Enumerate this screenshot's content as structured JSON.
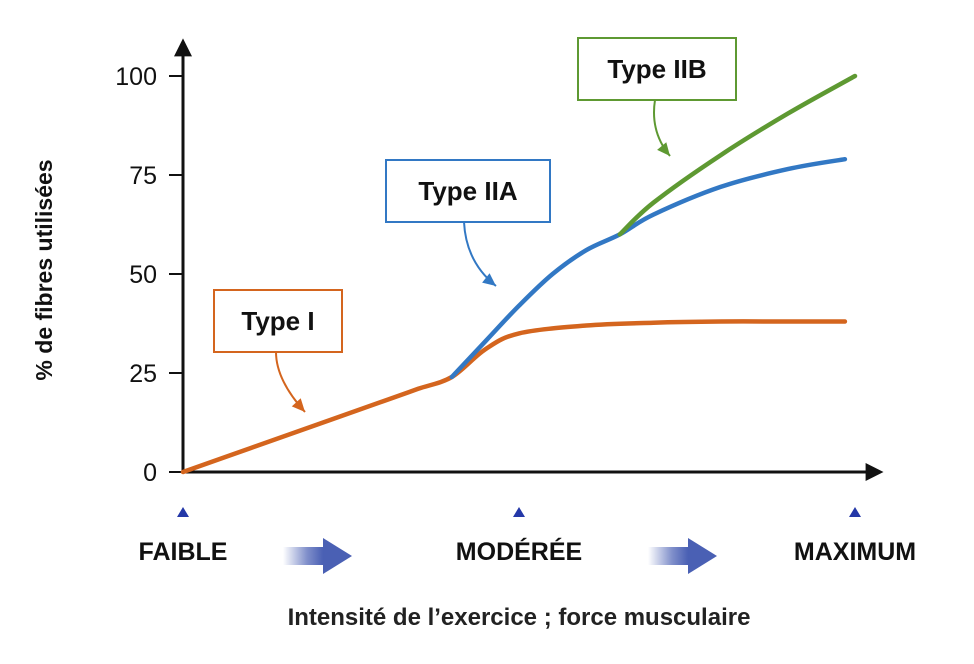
{
  "chart_data": {
    "type": "line",
    "title": "",
    "xlabel": "Intensité de l’exercice ; force musculaire",
    "ylabel": "% de fibres utilisées",
    "xlim": [
      0,
      1
    ],
    "ylim": [
      0,
      100
    ],
    "yticks": [
      "0",
      "25",
      "50",
      "75",
      "100"
    ],
    "x_levels": [
      {
        "label": "FAIBLE",
        "x": 0.0
      },
      {
        "label": "MODÉRÉE",
        "x": 0.5
      },
      {
        "label": "MAXIMUM",
        "x": 1.0
      }
    ],
    "series": [
      {
        "name": "Type I",
        "color": "#D4651E",
        "points": [
          [
            0,
            0
          ],
          [
            0.1,
            6
          ],
          [
            0.2,
            12
          ],
          [
            0.3,
            18
          ],
          [
            0.35,
            21
          ],
          [
            0.4,
            24
          ],
          [
            0.45,
            31
          ],
          [
            0.5,
            35
          ],
          [
            0.6,
            37
          ],
          [
            0.7,
            37.7
          ],
          [
            0.8,
            38
          ],
          [
            0.9,
            38
          ],
          [
            0.985,
            38
          ]
        ]
      },
      {
        "name": "Type IIA",
        "color": "#3278C4",
        "points": [
          [
            0.4,
            24
          ],
          [
            0.45,
            33
          ],
          [
            0.5,
            42
          ],
          [
            0.55,
            50
          ],
          [
            0.6,
            56
          ],
          [
            0.65,
            60
          ],
          [
            0.7,
            65
          ],
          [
            0.8,
            72
          ],
          [
            0.9,
            76.5
          ],
          [
            0.985,
            79
          ]
        ]
      },
      {
        "name": "Type IIB",
        "color": "#5E9932",
        "points": [
          [
            0.65,
            60
          ],
          [
            0.7,
            68
          ],
          [
            0.8,
            80
          ],
          [
            0.9,
            90.5
          ],
          [
            1.0,
            100
          ]
        ]
      }
    ]
  },
  "colors": {
    "axis": "#111111",
    "level_marker": "#2438A8",
    "arrow": "#4A60B4",
    "type1": "#D4651E",
    "type2a": "#3278C4",
    "type2b": "#5E9932"
  }
}
